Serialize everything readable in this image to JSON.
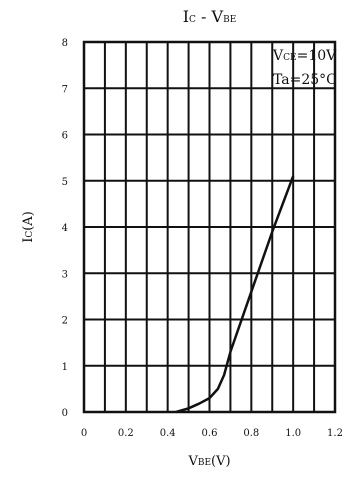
{
  "chart_data": {
    "type": "line",
    "title_main": "I",
    "title_sub": "C",
    "title_rest": " - V",
    "title_sub2": "BE",
    "xlabel_main": "V",
    "xlabel_sub": "BE",
    "xlabel_unit": "(V)",
    "ylabel_main": "I",
    "ylabel_sub": "C",
    "ylabel_unit": "(A)",
    "xlim": [
      0,
      1.2
    ],
    "ylim": [
      0,
      8
    ],
    "x_ticks": [
      0,
      0.2,
      0.4,
      0.6,
      0.8,
      1.0,
      1.2
    ],
    "x_tick_labels": [
      "0",
      "0.2",
      "0.4",
      "0.6",
      "0.8",
      "1.0",
      "1.2"
    ],
    "y_ticks": [
      0,
      1,
      2,
      3,
      4,
      5,
      6,
      7,
      8
    ],
    "y_tick_labels": [
      "0",
      "1",
      "2",
      "3",
      "4",
      "5",
      "6",
      "7",
      "8"
    ],
    "x_grid_step": 0.1,
    "grid": true,
    "annotations": [
      {
        "main": "V",
        "sub": "CE",
        "rest": "=10V"
      },
      {
        "main": "Ta=25°C",
        "sub": "",
        "rest": ""
      }
    ],
    "series": [
      {
        "x": [
          0.44,
          0.5,
          0.55,
          0.6,
          0.64,
          0.67,
          0.7,
          0.8,
          0.9,
          1.0
        ],
        "y": [
          0.0,
          0.08,
          0.18,
          0.3,
          0.5,
          0.8,
          1.3,
          2.6,
          3.9,
          5.1
        ]
      }
    ]
  }
}
